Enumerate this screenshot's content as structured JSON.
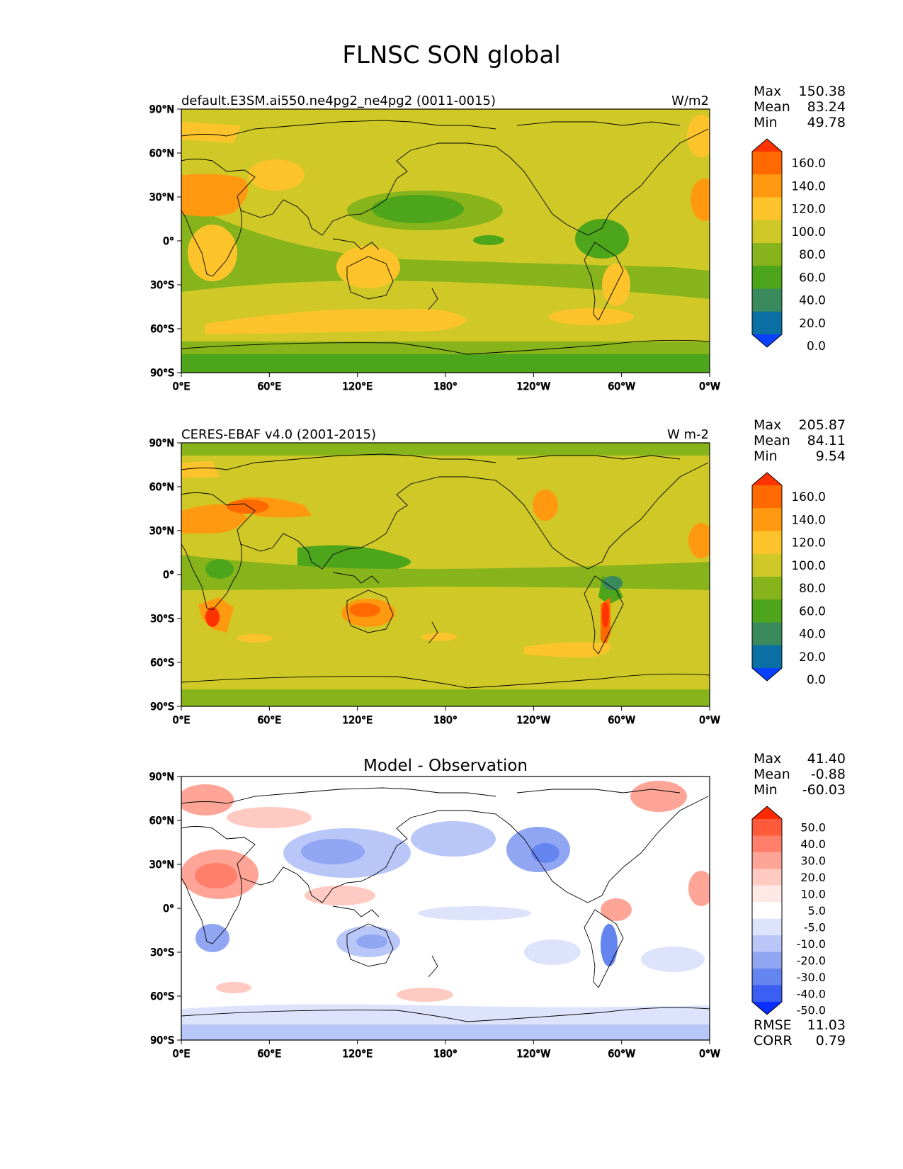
{
  "title": "FLNSC SON global",
  "panels": [
    {
      "id": "model",
      "subtitle_left": "default.E3SM.ai550.ne4pg2_ne4pg2 (0011-0015)",
      "subtitle_right": "W/m2",
      "stats": {
        "max_label": "Max",
        "max": "150.38",
        "mean_label": "Mean",
        "mean": "83.24",
        "min_label": "Min",
        "min": "49.78"
      },
      "colorbar": {
        "levels": [
          "160.0",
          "140.0",
          "120.0",
          "100.0",
          "80.0",
          "60.0",
          "40.0",
          "20.0",
          "0.0"
        ],
        "colors": [
          "#ff3300",
          "#ff6a00",
          "#ff9a10",
          "#fcc42a",
          "#cfc826",
          "#86b41a",
          "#4ca51b",
          "#3b8a5e",
          "#0a6fa3",
          "#0a40ff"
        ]
      }
    },
    {
      "id": "obs",
      "subtitle_left": "CERES-EBAF v4.0 (2001-2015)",
      "subtitle_right": "W m-2",
      "stats": {
        "max_label": "Max",
        "max": "205.87",
        "mean_label": "Mean",
        "mean": "84.11",
        "min_label": "Min",
        "min": "9.54"
      },
      "colorbar": {
        "levels": [
          "160.0",
          "140.0",
          "120.0",
          "100.0",
          "80.0",
          "60.0",
          "40.0",
          "20.0",
          "0.0"
        ],
        "colors": [
          "#ff3300",
          "#ff6a00",
          "#ff9a10",
          "#fcc42a",
          "#cfc826",
          "#86b41a",
          "#4ca51b",
          "#3b8a5e",
          "#0a6fa3",
          "#0a40ff"
        ]
      }
    },
    {
      "id": "diff",
      "subtitle_center": "Model - Observation",
      "stats": {
        "max_label": "Max",
        "max": "41.40",
        "mean_label": "Mean",
        "mean": "-0.88",
        "min_label": "Min",
        "min": "-60.03"
      },
      "extra_stats": {
        "rmse_label": "RMSE",
        "rmse": "11.03",
        "corr_label": "CORR",
        "corr": "0.79"
      },
      "colorbar": {
        "levels": [
          "50.0",
          "40.0",
          "30.0",
          "20.0",
          "10.0",
          "5.0",
          "-5.0",
          "-10.0",
          "-20.0",
          "-30.0",
          "-40.0",
          "-50.0"
        ],
        "colors": [
          "#ff2a00",
          "#ff5a3c",
          "#ff7f6a",
          "#ffa597",
          "#ffcac2",
          "#ffe9e6",
          "#ffffff",
          "#dde3fb",
          "#b9c6f8",
          "#90a6f3",
          "#6484f0",
          "#3a5ff2",
          "#0a2fff"
        ]
      }
    }
  ],
  "axes": {
    "lat_ticks": [
      "90°N",
      "60°N",
      "30°N",
      "0°",
      "30°S",
      "60°S",
      "90°S"
    ],
    "lon_ticks": [
      "0°E",
      "60°E",
      "120°E",
      "180°",
      "120°W",
      "60°W",
      "0°W"
    ]
  }
}
